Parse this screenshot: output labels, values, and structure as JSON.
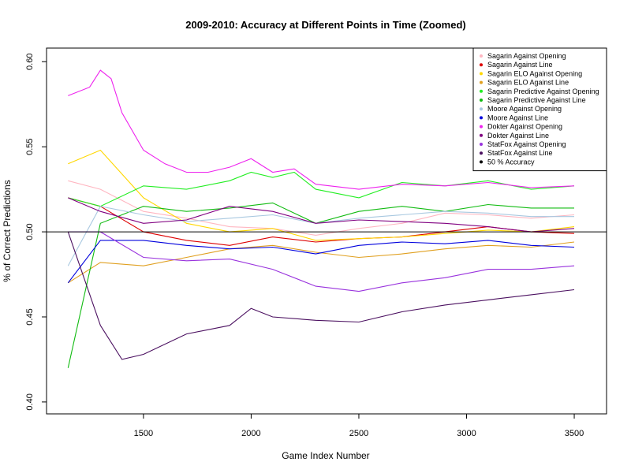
{
  "chart_data": {
    "type": "line",
    "title": "2009-2010: Accuracy at Different Points in Time (Zoomed)",
    "xlabel": "Game Index Number",
    "ylabel": "% of Correct Predictions",
    "xlim": [
      1050,
      3650
    ],
    "ylim": [
      0.393,
      0.608
    ],
    "x_ticks": [
      1500,
      2000,
      2500,
      3000,
      3500
    ],
    "x_tick_labels": [
      "1500",
      "2000",
      "2500",
      "3000",
      "3500"
    ],
    "y_ticks": [
      0.4,
      0.45,
      0.5,
      0.55,
      0.6
    ],
    "y_tick_labels": [
      "0.40",
      "0.45",
      "0.50",
      "0.55",
      "0.60"
    ],
    "legend_position": "top-right",
    "reference_line": {
      "name": "50 % Accuracy",
      "value": 0.5,
      "color": "#000000"
    },
    "series": [
      {
        "name": "Sagarin Against Opening",
        "color": "#ffb6c1",
        "x": [
          1150,
          1300,
          1500,
          1700,
          1900,
          2100,
          2300,
          2500,
          2700,
          2900,
          3100,
          3300,
          3500
        ],
        "y": [
          0.53,
          0.525,
          0.512,
          0.508,
          0.503,
          0.502,
          0.498,
          0.502,
          0.505,
          0.511,
          0.51,
          0.508,
          0.51
        ]
      },
      {
        "name": "Sagarin Against Line",
        "color": "#dd0000",
        "x": [
          1150,
          1300,
          1500,
          1700,
          1900,
          2100,
          2300,
          2500,
          2700,
          2900,
          3100,
          3300,
          3500
        ],
        "y": [
          0.52,
          0.515,
          0.5,
          0.495,
          0.492,
          0.497,
          0.494,
          0.496,
          0.497,
          0.5,
          0.503,
          0.5,
          0.499
        ]
      },
      {
        "name": "Sagarin ELO Against Opening",
        "color": "#ffd700",
        "x": [
          1150,
          1300,
          1500,
          1700,
          1900,
          2100,
          2300,
          2500,
          2700,
          2900,
          3100,
          3300,
          3500
        ],
        "y": [
          0.54,
          0.548,
          0.52,
          0.505,
          0.5,
          0.502,
          0.495,
          0.496,
          0.497,
          0.499,
          0.501,
          0.5,
          0.503
        ]
      },
      {
        "name": "Sagarin ELO Against Line",
        "color": "#e0a020",
        "x": [
          1150,
          1300,
          1500,
          1700,
          1900,
          2100,
          2300,
          2500,
          2700,
          2900,
          3100,
          3300,
          3500
        ],
        "y": [
          0.47,
          0.482,
          0.48,
          0.485,
          0.49,
          0.492,
          0.488,
          0.485,
          0.487,
          0.49,
          0.492,
          0.491,
          0.494
        ]
      },
      {
        "name": "Sagarin Predictive Against Opening",
        "color": "#22ee22",
        "x": [
          1150,
          1300,
          1500,
          1700,
          1900,
          2000,
          2100,
          2200,
          2300,
          2500,
          2700,
          2900,
          3100,
          3300,
          3500
        ],
        "y": [
          0.52,
          0.515,
          0.527,
          0.525,
          0.53,
          0.535,
          0.532,
          0.535,
          0.525,
          0.52,
          0.529,
          0.527,
          0.53,
          0.525,
          0.527
        ]
      },
      {
        "name": "Sagarin Predictive Against Line",
        "color": "#11bb11",
        "x": [
          1150,
          1300,
          1500,
          1700,
          1900,
          2100,
          2300,
          2500,
          2700,
          2900,
          3100,
          3300,
          3500
        ],
        "y": [
          0.42,
          0.505,
          0.515,
          0.512,
          0.514,
          0.517,
          0.505,
          0.512,
          0.515,
          0.512,
          0.516,
          0.514,
          0.514
        ]
      },
      {
        "name": "Moore Against Opening",
        "color": "#a8c8e0",
        "x": [
          1150,
          1300,
          1500,
          1700,
          1900,
          2100,
          2300,
          2500,
          2700,
          2900,
          3100,
          3300,
          3500
        ],
        "y": [
          0.48,
          0.515,
          0.51,
          0.506,
          0.508,
          0.51,
          0.505,
          0.508,
          0.51,
          0.512,
          0.511,
          0.509,
          0.509
        ]
      },
      {
        "name": "Moore Against Line",
        "color": "#0000dd",
        "x": [
          1150,
          1300,
          1500,
          1700,
          1900,
          2100,
          2300,
          2500,
          2700,
          2900,
          3100,
          3300,
          3500
        ],
        "y": [
          0.47,
          0.495,
          0.495,
          0.492,
          0.49,
          0.491,
          0.487,
          0.492,
          0.494,
          0.493,
          0.495,
          0.492,
          0.491
        ]
      },
      {
        "name": "Dokter Against Opening",
        "color": "#ee22ee",
        "x": [
          1150,
          1250,
          1300,
          1350,
          1400,
          1500,
          1600,
          1700,
          1800,
          1900,
          2000,
          2100,
          2200,
          2300,
          2500,
          2700,
          2900,
          3100,
          3300,
          3500
        ],
        "y": [
          0.58,
          0.585,
          0.595,
          0.59,
          0.57,
          0.548,
          0.54,
          0.535,
          0.535,
          0.538,
          0.543,
          0.535,
          0.537,
          0.528,
          0.525,
          0.528,
          0.527,
          0.529,
          0.526,
          0.527
        ]
      },
      {
        "name": "Dokter Against Line",
        "color": "#800080",
        "x": [
          1150,
          1300,
          1500,
          1700,
          1900,
          2100,
          2300,
          2500,
          2700,
          2900,
          3100,
          3300,
          3500
        ],
        "y": [
          0.52,
          0.512,
          0.505,
          0.507,
          0.515,
          0.512,
          0.505,
          0.507,
          0.506,
          0.505,
          0.503,
          0.5,
          0.502
        ]
      },
      {
        "name": "StatFox Against Opening",
        "color": "#9933dd",
        "x": [
          1150,
          1300,
          1500,
          1700,
          1900,
          2100,
          2300,
          2500,
          2700,
          2900,
          3100,
          3300,
          3500
        ],
        "y": [
          0.5,
          0.5,
          0.485,
          0.483,
          0.484,
          0.478,
          0.468,
          0.465,
          0.47,
          0.473,
          0.478,
          0.478,
          0.48
        ]
      },
      {
        "name": "StatFox Against Line",
        "color": "#4b1060",
        "x": [
          1150,
          1300,
          1400,
          1500,
          1700,
          1900,
          2000,
          2100,
          2300,
          2500,
          2700,
          2900,
          3100,
          3300,
          3500
        ],
        "y": [
          0.5,
          0.445,
          0.425,
          0.428,
          0.44,
          0.445,
          0.455,
          0.45,
          0.448,
          0.447,
          0.453,
          0.457,
          0.46,
          0.463,
          0.466
        ]
      }
    ]
  }
}
